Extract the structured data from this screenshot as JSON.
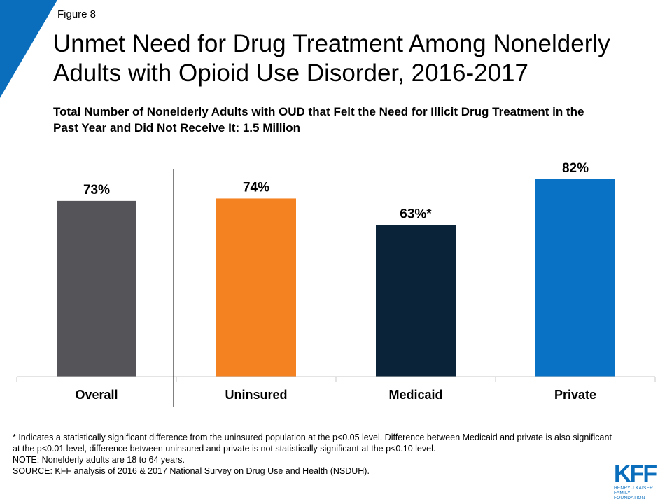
{
  "figure_label": "Figure 8",
  "title": "Unmet Need for Drug Treatment Among Nonelderly Adults with Opioid Use Disorder, 2016-2017",
  "subtitle": "Total Number of Nonelderly Adults with OUD that Felt the Need for Illicit Drug Treatment in the Past Year and Did Not Receive It: 1.5 Million",
  "colors": {
    "corner": "#0a6ebd",
    "overall": "#555559",
    "uninsured": "#f58220",
    "medicaid": "#0b2339",
    "private": "#0a72c4"
  },
  "chart_data": {
    "type": "bar",
    "title": "",
    "xlabel": "",
    "ylabel": "",
    "ylim": [
      0,
      100
    ],
    "categories": [
      "Overall",
      "Uninsured",
      "Medicaid",
      "Private"
    ],
    "values": [
      73,
      74,
      63,
      82
    ],
    "data_labels": [
      "73%",
      "74%",
      "63%*",
      "82%"
    ],
    "grid": false
  },
  "notes": {
    "significance": "* Indicates a statistically significant difference from the uninsured population at the p<0.05 level. Difference between Medicaid and private is also significant at the p<0.01 level, difference between uninsured and private is not statistically significant at the p<0.10 level.",
    "note": "NOTE: Nonelderly adults are 18 to 64 years.",
    "source": "SOURCE: KFF analysis of 2016 & 2017 National Survey on Drug Use and Health (NSDUH)."
  },
  "logo": {
    "name": "KFF",
    "line1": "HENRY J KAISER",
    "line2": "FAMILY FOUNDATION"
  }
}
